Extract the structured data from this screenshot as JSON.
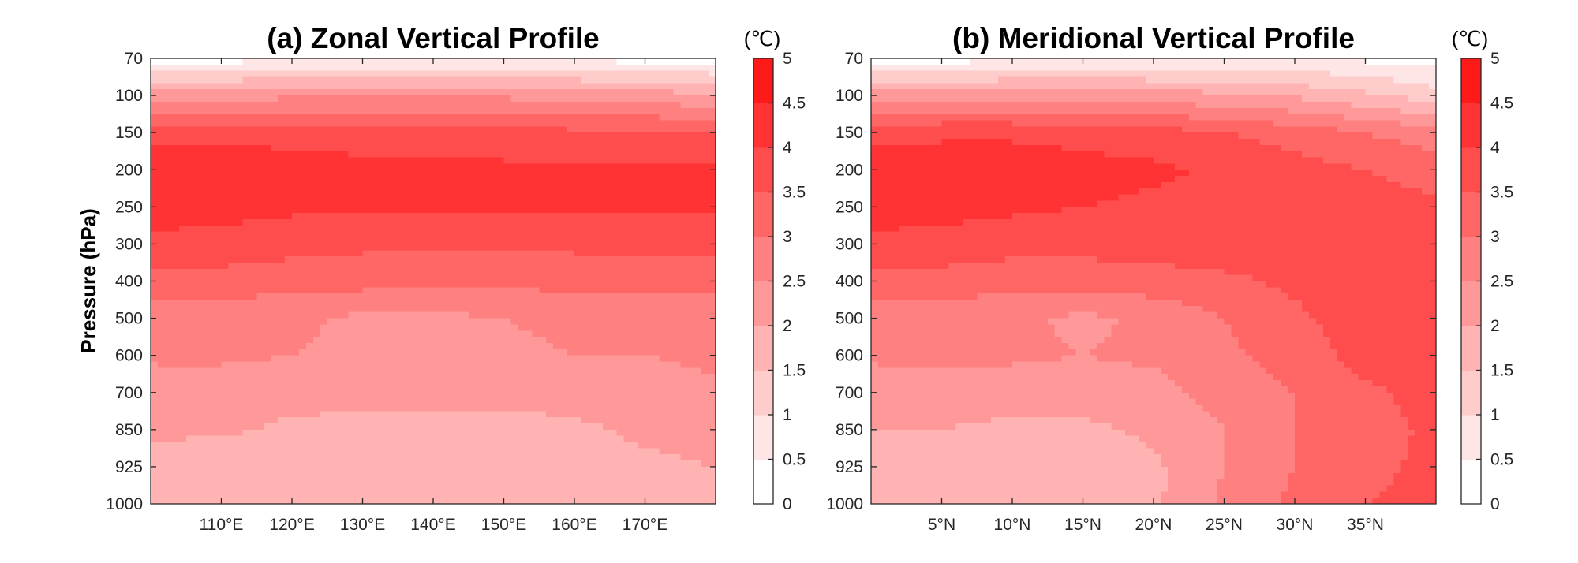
{
  "figure": {
    "ylabel": "Pressure (hPa)",
    "y_ticks": [
      "70",
      "100",
      "150",
      "200",
      "250",
      "300",
      "400",
      "500",
      "600",
      "700",
      "850",
      "925",
      "1000"
    ],
    "colorbar": {
      "unit": "(℃)",
      "ticks": [
        "0",
        "0.5",
        "1",
        "1.5",
        "2",
        "2.5",
        "3",
        "3.5",
        "4",
        "4.5",
        "5"
      ],
      "min": 0,
      "max": 5,
      "step": 0.5,
      "color_low": "#ffffff",
      "color_high": "#ff1a1a"
    }
  },
  "chart_data": [
    {
      "type": "heatmap",
      "title": "(a) Zonal Vertical Profile",
      "ylabel": "Pressure (hPa)",
      "x_tick_labels": [
        "110°E",
        "120°E",
        "130°E",
        "140°E",
        "150°E",
        "160°E",
        "170°E"
      ],
      "x_ticks": [
        110,
        120,
        130,
        140,
        150,
        160,
        170
      ],
      "xlim": [
        100,
        180
      ],
      "x": [
        100,
        110,
        120,
        130,
        140,
        150,
        160,
        170,
        180
      ],
      "y_levels": [
        70,
        100,
        150,
        200,
        250,
        300,
        400,
        500,
        600,
        700,
        850,
        925,
        1000
      ],
      "values": [
        [
          0.2,
          0.3,
          0.4,
          0.4,
          0.5,
          0.4,
          0.4,
          0.3,
          0.2
        ],
        [
          2.2,
          2.3,
          2.4,
          2.4,
          2.5,
          2.4,
          2.3,
          2.2,
          2.1
        ],
        [
          3.8,
          3.9,
          3.8,
          3.7,
          3.7,
          3.7,
          3.6,
          3.6,
          3.5
        ],
        [
          4.3,
          4.3,
          4.2,
          4.2,
          4.1,
          4.1,
          4.1,
          4.1,
          4.1
        ],
        [
          4.2,
          4.2,
          4.1,
          4.1,
          4.1,
          4.1,
          4.1,
          4.1,
          4.1
        ],
        [
          3.9,
          3.8,
          3.7,
          3.6,
          3.6,
          3.6,
          3.6,
          3.6,
          3.6
        ],
        [
          3.3,
          3.3,
          3.2,
          3.2,
          3.1,
          3.1,
          3.2,
          3.2,
          3.2
        ],
        [
          2.7,
          2.7,
          2.6,
          2.4,
          2.4,
          2.5,
          2.6,
          2.7,
          2.7
        ],
        [
          2.6,
          2.6,
          2.5,
          2.4,
          2.4,
          2.4,
          2.5,
          2.5,
          2.6
        ],
        [
          2.2,
          2.2,
          2.2,
          2.2,
          2.2,
          2.2,
          2.2,
          2.3,
          2.4
        ],
        [
          2.1,
          2.1,
          1.9,
          1.8,
          1.8,
          1.8,
          1.9,
          2.1,
          2.2
        ],
        [
          1.8,
          1.6,
          1.6,
          1.6,
          1.6,
          1.6,
          1.7,
          1.9,
          2.0
        ],
        [
          1.6,
          1.6,
          1.6,
          1.6,
          1.6,
          1.6,
          1.6,
          1.6,
          1.6
        ]
      ]
    },
    {
      "type": "heatmap",
      "title": "(b) Meridional Vertical Profile",
      "ylabel": "",
      "x_tick_labels": [
        "5°N",
        "10°N",
        "15°N",
        "20°N",
        "25°N",
        "30°N",
        "35°N"
      ],
      "x_ticks": [
        5,
        10,
        15,
        20,
        25,
        30,
        35
      ],
      "xlim": [
        0,
        40
      ],
      "x": [
        0,
        5,
        10,
        15,
        20,
        25,
        30,
        35,
        40
      ],
      "y_levels": [
        70,
        100,
        150,
        200,
        250,
        300,
        400,
        500,
        600,
        700,
        850,
        925,
        1000
      ],
      "values": [
        [
          0.2,
          0.3,
          0.4,
          0.5,
          0.5,
          0.6,
          0.5,
          0.4,
          0.3
        ],
        [
          2.2,
          2.3,
          2.3,
          2.3,
          2.2,
          2.1,
          1.9,
          1.6,
          1.2
        ],
        [
          3.8,
          3.9,
          3.9,
          3.8,
          3.7,
          3.5,
          3.3,
          3.0,
          2.7
        ],
        [
          4.3,
          4.3,
          4.3,
          4.2,
          4.1,
          3.9,
          3.7,
          3.5,
          3.3
        ],
        [
          4.2,
          4.2,
          4.1,
          4.0,
          3.9,
          3.9,
          3.8,
          3.7,
          3.6
        ],
        [
          3.9,
          3.8,
          3.7,
          3.7,
          3.7,
          3.8,
          3.8,
          3.8,
          3.8
        ],
        [
          3.3,
          3.3,
          3.2,
          3.2,
          3.3,
          3.4,
          3.6,
          3.8,
          4.0
        ],
        [
          2.7,
          2.7,
          2.6,
          2.4,
          2.6,
          3.0,
          3.4,
          3.8,
          4.0
        ],
        [
          2.6,
          2.6,
          2.6,
          2.5,
          2.6,
          2.9,
          3.2,
          3.7,
          4.0
        ],
        [
          2.2,
          2.2,
          2.2,
          2.2,
          2.3,
          2.7,
          3.0,
          3.4,
          3.7
        ],
        [
          2.0,
          2.0,
          1.9,
          1.9,
          2.1,
          2.5,
          3.0,
          3.3,
          3.6
        ],
        [
          1.6,
          1.6,
          1.6,
          1.6,
          1.9,
          2.5,
          3.0,
          3.4,
          3.6
        ],
        [
          1.6,
          1.6,
          1.6,
          1.6,
          1.9,
          2.6,
          3.1,
          3.5,
          3.6
        ]
      ]
    }
  ]
}
